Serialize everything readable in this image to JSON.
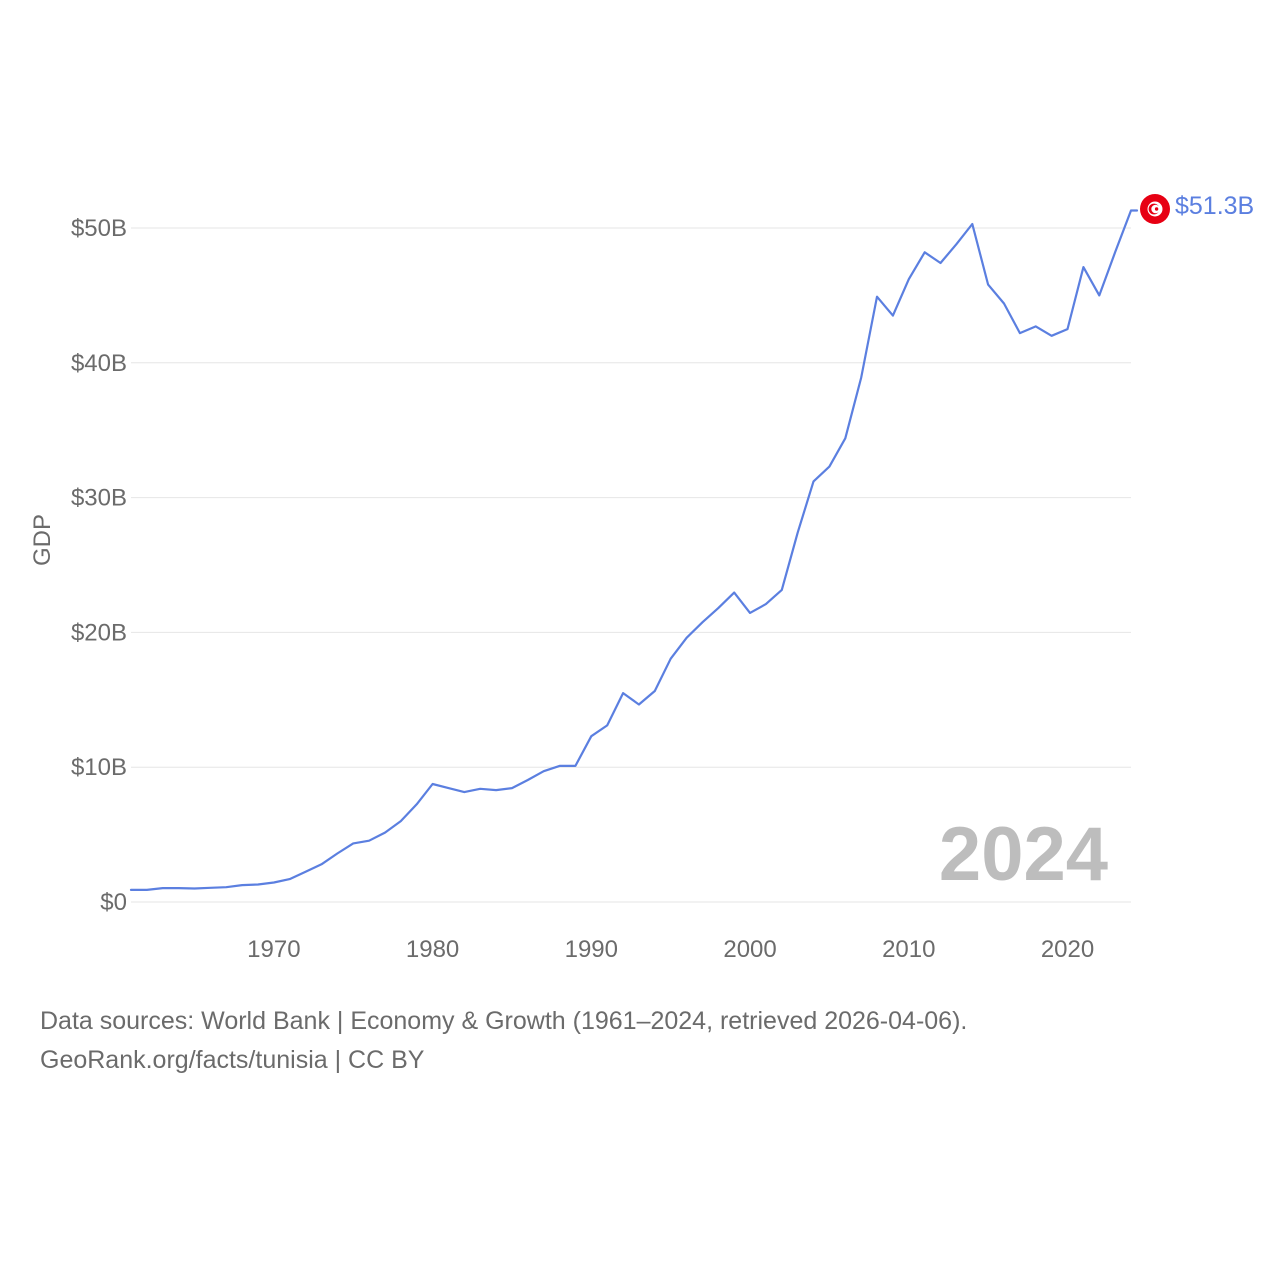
{
  "chart_data": {
    "type": "line",
    "title": "",
    "xlabel": "",
    "ylabel": "GDP",
    "ylim": [
      0,
      50000000000
    ],
    "xlim": [
      1961,
      2024
    ],
    "y_ticks": [
      {
        "value": 0,
        "label": "$0"
      },
      {
        "value": 10000000000,
        "label": "$10B"
      },
      {
        "value": 20000000000,
        "label": "$20B"
      },
      {
        "value": 30000000000,
        "label": "$30B"
      },
      {
        "value": 40000000000,
        "label": "$40B"
      },
      {
        "value": 50000000000,
        "label": "$50B"
      }
    ],
    "x_ticks": [
      {
        "value": 1970,
        "label": "1970"
      },
      {
        "value": 1980,
        "label": "1980"
      },
      {
        "value": 1990,
        "label": "1990"
      },
      {
        "value": 2000,
        "label": "2000"
      },
      {
        "value": 2010,
        "label": "2010"
      },
      {
        "value": 2020,
        "label": "2020"
      }
    ],
    "grid": true,
    "series": [
      {
        "name": "Tunisia",
        "color": "#5b7fe0",
        "x": [
          1961,
          1962,
          1963,
          1964,
          1965,
          1966,
          1967,
          1968,
          1969,
          1970,
          1971,
          1972,
          1973,
          1974,
          1975,
          1976,
          1977,
          1978,
          1979,
          1980,
          1981,
          1982,
          1983,
          1984,
          1985,
          1986,
          1987,
          1988,
          1989,
          1990,
          1991,
          1992,
          1993,
          1994,
          1995,
          1996,
          1997,
          1998,
          1999,
          2000,
          2001,
          2002,
          2003,
          2004,
          2005,
          2006,
          2007,
          2008,
          2009,
          2010,
          2011,
          2012,
          2013,
          2014,
          2015,
          2016,
          2017,
          2018,
          2019,
          2020,
          2021,
          2022,
          2023,
          2024
        ],
        "values": [
          0.9,
          0.9,
          1.03,
          1.03,
          1.0,
          1.05,
          1.1,
          1.25,
          1.3,
          1.45,
          1.7,
          2.25,
          2.8,
          3.6,
          4.35,
          4.55,
          5.15,
          6.0,
          7.25,
          8.75,
          8.45,
          8.15,
          8.4,
          8.3,
          8.45,
          9.05,
          9.7,
          10.1,
          10.1,
          12.3,
          13.1,
          15.5,
          14.65,
          15.65,
          18.05,
          19.6,
          20.75,
          21.8,
          22.95,
          21.45,
          22.1,
          23.15,
          27.4,
          31.2,
          32.3,
          34.4,
          38.9,
          44.9,
          43.5,
          46.2,
          48.2,
          47.4,
          48.8,
          50.3,
          45.8,
          44.4,
          42.2,
          42.7,
          42.0,
          42.5,
          47.1,
          45.0,
          48.2,
          51.3
        ]
      }
    ],
    "value_unit": "billion USD",
    "end_label": "$51.3B",
    "year_label": "2024",
    "flag": {
      "name": "tunisia-flag",
      "bg_color": "#e70013",
      "fg_color": "#ffffff"
    }
  },
  "footer": {
    "line1": "Data sources: World Bank | Economy & Growth (1961–2024, retrieved 2026-04-06).",
    "line2": "GeoRank.org/facts/tunisia | CC BY"
  }
}
